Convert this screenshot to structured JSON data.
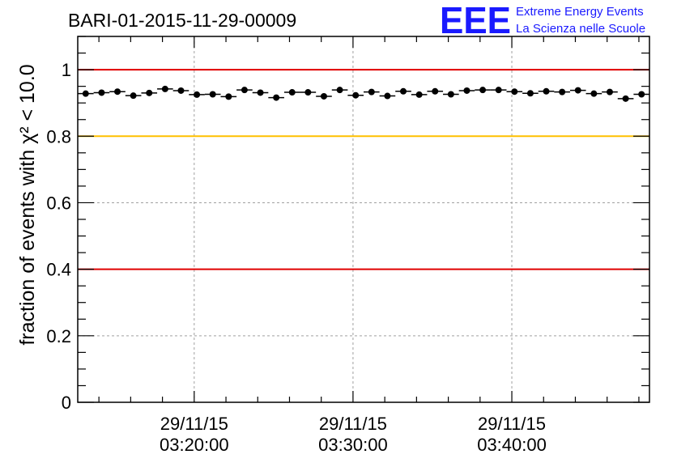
{
  "header": {
    "title": "BARI-01-2015-11-29-00009"
  },
  "logo": {
    "mark": "EEE",
    "line1": "Extreme Energy Events",
    "line2": "La Scienza nelle Scuole",
    "color": "#1a1aff"
  },
  "chart_data": {
    "type": "scatter",
    "title": "BARI-01-2015-11-29-00009",
    "ylabel": "fraction of events with χ² < 10.0",
    "xlabel": "",
    "ylim": [
      0,
      1.1
    ],
    "yticks": [
      {
        "value": 0,
        "label": "0"
      },
      {
        "value": 0.2,
        "label": "0.2"
      },
      {
        "value": 0.4,
        "label": "0.4"
      },
      {
        "value": 0.6,
        "label": "0.6"
      },
      {
        "value": 0.8,
        "label": "0.8"
      },
      {
        "value": 1.0,
        "label": "1"
      }
    ],
    "xlim": [
      "2015-11-29 03:12:40",
      "2015-11-29 03:48:40"
    ],
    "xticks": [
      {
        "value": "2015-11-29 03:20:00",
        "date": "29/11/15",
        "time": "03:20:00"
      },
      {
        "value": "2015-11-29 03:30:00",
        "date": "29/11/15",
        "time": "03:30:00"
      },
      {
        "value": "2015-11-29 03:40:00",
        "date": "29/11/15",
        "time": "03:40:00"
      }
    ],
    "grid": true,
    "reference_lines": [
      {
        "y": 1.0,
        "color": "#e00000"
      },
      {
        "y": 0.8,
        "color": "#ffc000"
      },
      {
        "y": 0.4,
        "color": "#e00000"
      }
    ],
    "series": [
      {
        "color": "#000000",
        "x": [
          "2015-11-29 03:13:10",
          "2015-11-29 03:14:10",
          "2015-11-29 03:15:10",
          "2015-11-29 03:16:10",
          "2015-11-29 03:17:10",
          "2015-11-29 03:18:10",
          "2015-11-29 03:19:10",
          "2015-11-29 03:20:10",
          "2015-11-29 03:21:10",
          "2015-11-29 03:22:10",
          "2015-11-29 03:23:10",
          "2015-11-29 03:24:10",
          "2015-11-29 03:25:10",
          "2015-11-29 03:26:10",
          "2015-11-29 03:27:10",
          "2015-11-29 03:28:10",
          "2015-11-29 03:29:10",
          "2015-11-29 03:30:10",
          "2015-11-29 03:31:10",
          "2015-11-29 03:32:10",
          "2015-11-29 03:33:10",
          "2015-11-29 03:34:10",
          "2015-11-29 03:35:10",
          "2015-11-29 03:36:10",
          "2015-11-29 03:37:10",
          "2015-11-29 03:38:10",
          "2015-11-29 03:39:10",
          "2015-11-29 03:40:10",
          "2015-11-29 03:41:10",
          "2015-11-29 03:42:10",
          "2015-11-29 03:43:10",
          "2015-11-29 03:44:10",
          "2015-11-29 03:45:10",
          "2015-11-29 03:46:10",
          "2015-11-29 03:47:10",
          "2015-11-29 03:48:10"
        ],
        "values": [
          0.928,
          0.931,
          0.934,
          0.922,
          0.93,
          0.942,
          0.937,
          0.925,
          0.926,
          0.919,
          0.939,
          0.931,
          0.916,
          0.932,
          0.932,
          0.92,
          0.939,
          0.923,
          0.933,
          0.921,
          0.935,
          0.925,
          0.935,
          0.926,
          0.937,
          0.939,
          0.939,
          0.934,
          0.929,
          0.935,
          0.933,
          0.938,
          0.928,
          0.933,
          0.913,
          0.926
        ]
      }
    ]
  }
}
